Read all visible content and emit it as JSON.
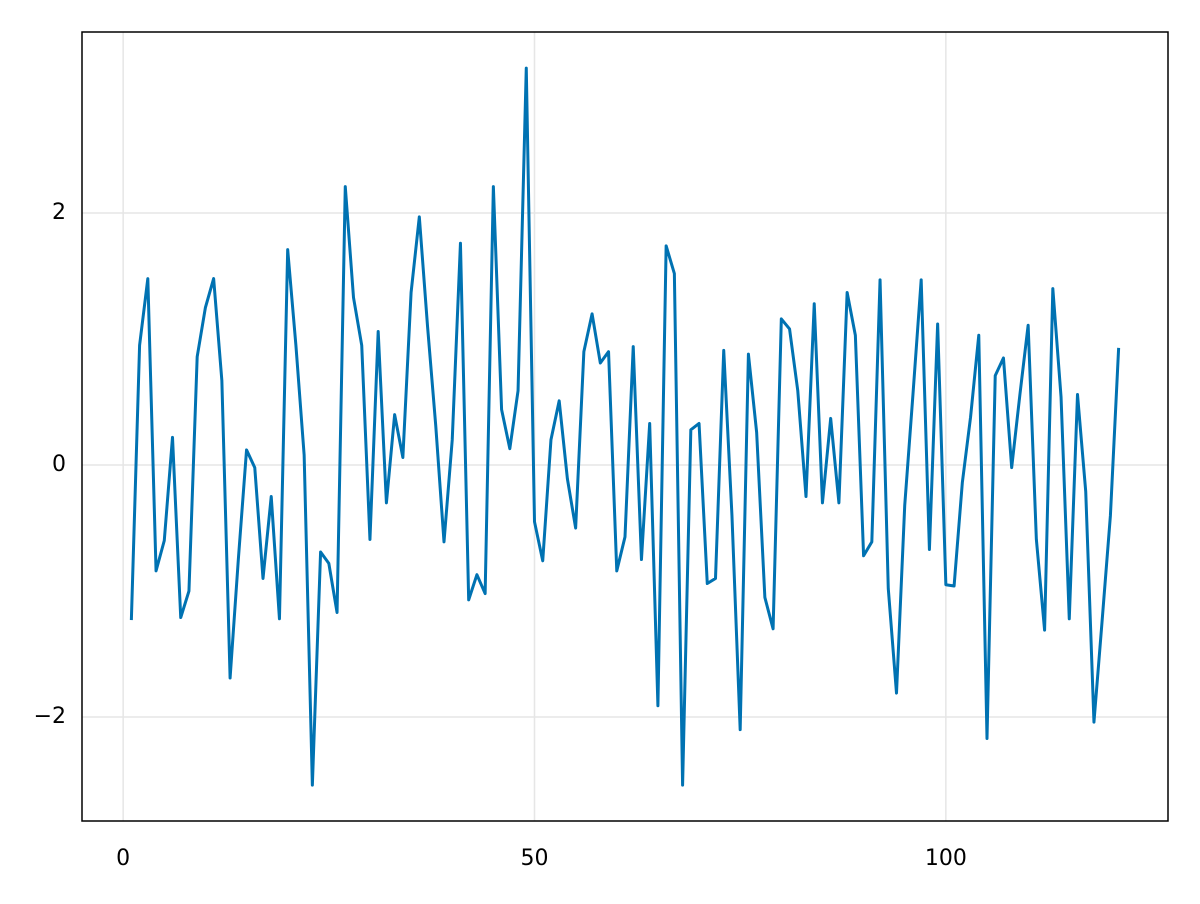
{
  "chart_data": {
    "type": "line",
    "color": "#0072b2",
    "grid": true,
    "xlim": [
      -5,
      127
    ],
    "ylim": [
      -2.825,
      3.437
    ],
    "xticks": [
      0,
      50,
      100
    ],
    "yticks": [
      {
        "value": -2,
        "label": "−2"
      },
      0,
      2
    ],
    "x": [
      1,
      2,
      3,
      4,
      5,
      6,
      7,
      8,
      9,
      10,
      11,
      12,
      13,
      14,
      15,
      16,
      17,
      18,
      19,
      20,
      21,
      22,
      23,
      24,
      25,
      26,
      27,
      28,
      29,
      30,
      31,
      32,
      33,
      34,
      35,
      36,
      37,
      38,
      39,
      40,
      41,
      42,
      43,
      44,
      45,
      46,
      47,
      48,
      49,
      50,
      51,
      52,
      53,
      54,
      55,
      56,
      57,
      58,
      59,
      60,
      61,
      62,
      63,
      64,
      65,
      66,
      67,
      68,
      69,
      70,
      71,
      72,
      73,
      74,
      75,
      76,
      77,
      78,
      79,
      80,
      81,
      82,
      83,
      84,
      85,
      86,
      87,
      88,
      89,
      90,
      91,
      92,
      93,
      94,
      95,
      96,
      97,
      98,
      99,
      100,
      101,
      102,
      103,
      104,
      105,
      106,
      107,
      108,
      109,
      110,
      111,
      112,
      113,
      114,
      115,
      116,
      117,
      118,
      119,
      120,
      121
    ],
    "values": [
      -1.23,
      0.95,
      1.48,
      -0.84,
      -0.6,
      0.22,
      -1.21,
      -1.0,
      0.86,
      1.25,
      1.48,
      0.67,
      -1.69,
      -0.75,
      0.12,
      -0.02,
      -0.9,
      -0.25,
      -1.22,
      1.71,
      0.95,
      0.08,
      -2.54,
      -0.69,
      -0.78,
      -1.17,
      2.21,
      1.33,
      0.95,
      -0.59,
      1.06,
      -0.3,
      0.4,
      0.06,
      1.37,
      1.97,
      1.1,
      0.31,
      -0.61,
      0.2,
      1.76,
      -1.07,
      -0.87,
      -1.02,
      2.21,
      0.44,
      0.13,
      0.59,
      3.15,
      -0.45,
      -0.76,
      0.2,
      0.51,
      -0.11,
      -0.5,
      0.9,
      1.2,
      0.81,
      0.9,
      -0.84,
      -0.57,
      0.94,
      -0.75,
      0.33,
      -1.91,
      1.74,
      1.52,
      -2.54,
      0.28,
      0.33,
      -0.94,
      -0.9,
      0.91,
      -0.4,
      -2.1,
      0.88,
      0.26,
      -1.05,
      -1.3,
      1.16,
      1.08,
      0.59,
      -0.25,
      1.28,
      -0.3,
      0.37,
      -0.3,
      1.37,
      1.03,
      -0.72,
      -0.61,
      1.47,
      -0.98,
      -1.81,
      -0.32,
      0.56,
      1.47,
      -0.67,
      1.12,
      -0.95,
      -0.96,
      -0.14,
      0.38,
      1.03,
      -2.17,
      0.71,
      0.85,
      -0.02,
      0.56,
      1.11,
      -0.59,
      -1.31,
      1.4,
      0.54,
      -1.22,
      0.56,
      -0.21,
      -2.04,
      -1.23,
      -0.4,
      0.93
    ]
  }
}
